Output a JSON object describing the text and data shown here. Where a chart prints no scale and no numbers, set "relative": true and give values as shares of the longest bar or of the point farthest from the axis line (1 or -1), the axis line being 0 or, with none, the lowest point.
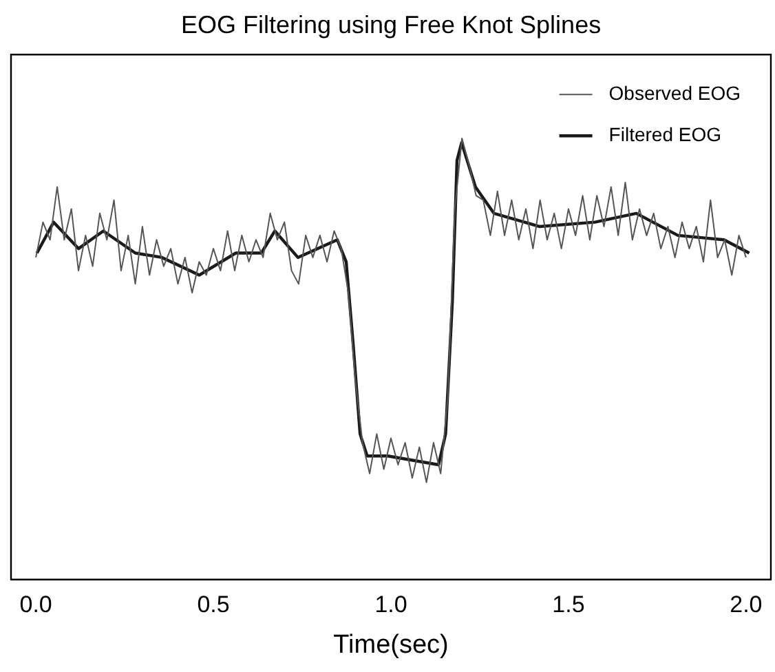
{
  "chart_data": {
    "type": "line",
    "title": "EOG Filtering using Free Knot Splines",
    "xlabel": "Time(sec)",
    "relative": true,
    "xlim": [
      -0.07,
      2.07
    ],
    "xticks": [
      {
        "value": 0,
        "label": "0.0"
      },
      {
        "value": 0.5,
        "label": "0.5"
      },
      {
        "value": 1,
        "label": "1.0"
      },
      {
        "value": 1.5,
        "label": "1.5"
      },
      {
        "value": 2,
        "label": "2.0"
      }
    ],
    "tick_labels": "x",
    "grid": false,
    "legend": "top right",
    "marker": "none",
    "series": [
      {
        "name": "Observed EOG",
        "color": "#555555",
        "x": [
          0,
          0.02,
          0.04,
          0.06,
          0.08,
          0.1,
          0.12,
          0.14,
          0.16,
          0.18,
          0.2,
          0.22,
          0.24,
          0.26,
          0.28,
          0.3,
          0.32,
          0.34,
          0.36,
          0.38,
          0.4,
          0.42,
          0.44,
          0.46,
          0.48,
          0.5,
          0.52,
          0.54,
          0.56,
          0.58,
          0.6,
          0.62,
          0.64,
          0.66,
          0.68,
          0.7,
          0.72,
          0.74,
          0.76,
          0.78,
          0.8,
          0.82,
          0.84,
          0.86,
          0.88,
          0.9,
          0.92,
          0.94,
          0.96,
          0.98,
          1,
          1.02,
          1.04,
          1.06,
          1.08,
          1.1,
          1.12,
          1.14,
          1.16,
          1.18,
          1.2,
          1.22,
          1.24,
          1.26,
          1.28,
          1.3,
          1.32,
          1.34,
          1.36,
          1.38,
          1.4,
          1.42,
          1.44,
          1.46,
          1.48,
          1.5,
          1.52,
          1.54,
          1.56,
          1.58,
          1.6,
          1.62,
          1.64,
          1.66,
          1.68,
          1.7,
          1.72,
          1.74,
          1.76,
          1.78,
          1.8,
          1.82,
          1.84,
          1.86,
          1.88,
          1.9,
          1.92,
          1.94,
          1.96,
          1.98,
          2
        ],
        "values": [
          0.73,
          0.81,
          0.77,
          0.89,
          0.77,
          0.84,
          0.7,
          0.78,
          0.71,
          0.83,
          0.77,
          0.86,
          0.7,
          0.78,
          0.67,
          0.8,
          0.69,
          0.77,
          0.71,
          0.75,
          0.67,
          0.73,
          0.65,
          0.72,
          0.69,
          0.75,
          0.7,
          0.79,
          0.7,
          0.78,
          0.72,
          0.77,
          0.73,
          0.83,
          0.77,
          0.81,
          0.7,
          0.67,
          0.78,
          0.73,
          0.78,
          0.72,
          0.79,
          0.75,
          0.65,
          0.45,
          0.31,
          0.24,
          0.33,
          0.25,
          0.32,
          0.26,
          0.31,
          0.23,
          0.3,
          0.22,
          0.31,
          0.24,
          0.41,
          0.84,
          1,
          0.94,
          0.87,
          0.86,
          0.78,
          0.88,
          0.78,
          0.86,
          0.77,
          0.84,
          0.75,
          0.86,
          0.77,
          0.83,
          0.75,
          0.84,
          0.78,
          0.87,
          0.77,
          0.87,
          0.8,
          0.89,
          0.78,
          0.9,
          0.77,
          0.84,
          0.78,
          0.83,
          0.75,
          0.8,
          0.73,
          0.81,
          0.75,
          0.8,
          0.72,
          0.86,
          0.73,
          0.77,
          0.69,
          0.78,
          0.73
        ]
      },
      {
        "name": "Filtered EOG",
        "color": "#1a1a1a",
        "x": [
          0.003,
          0.05,
          0.12,
          0.19,
          0.28,
          0.355,
          0.46,
          0.563,
          0.635,
          0.673,
          0.738,
          0.849,
          0.874,
          0.894,
          0.913,
          0.933,
          0.952,
          0.991,
          1.134,
          1.154,
          1.173,
          1.186,
          1.199,
          1.238,
          1.29,
          1.419,
          1.575,
          1.691,
          1.808,
          1.938,
          2.009
        ],
        "values": [
          0.74,
          0.81,
          0.75,
          0.79,
          0.74,
          0.73,
          0.69,
          0.74,
          0.74,
          0.79,
          0.73,
          0.77,
          0.72,
          0.53,
          0.33,
          0.28,
          0.28,
          0.28,
          0.26,
          0.33,
          0.63,
          0.95,
          0.99,
          0.89,
          0.83,
          0.8,
          0.81,
          0.83,
          0.78,
          0.77,
          0.74
        ]
      }
    ]
  }
}
